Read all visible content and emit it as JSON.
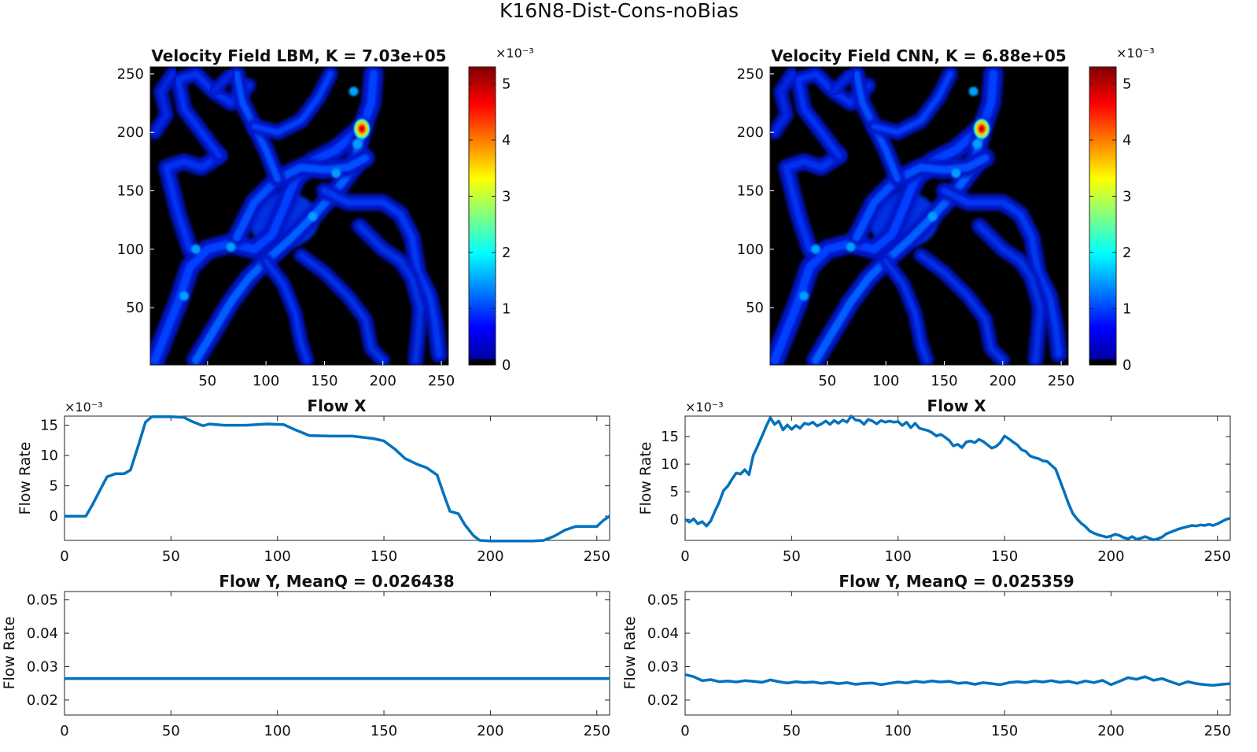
{
  "figure": {
    "title": "K16N8-Dist-Cons-noBias",
    "colormap": [
      "#00008f",
      "#0000ff",
      "#0080ff",
      "#00ffff",
      "#80ff80",
      "#ffff00",
      "#ff8000",
      "#ff0000",
      "#800000"
    ]
  },
  "chart_data": [
    {
      "id": "velocity_lbm",
      "type": "heatmap",
      "title": "Velocity Field LBM, K = 7.03e+05",
      "xlim": [
        1,
        256
      ],
      "ylim": [
        1,
        256
      ],
      "xticks": [
        "50",
        "100",
        "150",
        "200",
        "250"
      ],
      "yticks": [
        "50",
        "100",
        "150",
        "200",
        "250"
      ],
      "colorbar": {
        "exponent": "×10⁻³",
        "ticks": [
          "0",
          "1",
          "2",
          "3",
          "4",
          "5"
        ],
        "range": [
          0,
          5.3
        ]
      },
      "hotspot": {
        "x": 182,
        "y": 203,
        "value": 5.2
      }
    },
    {
      "id": "velocity_cnn",
      "type": "heatmap",
      "title": "Velocity Field CNN, K = 6.88e+05",
      "xlim": [
        1,
        256
      ],
      "ylim": [
        1,
        256
      ],
      "xticks": [
        "50",
        "100",
        "150",
        "200",
        "250"
      ],
      "yticks": [
        "50",
        "100",
        "150",
        "200",
        "250"
      ],
      "colorbar": {
        "exponent": "×10⁻³",
        "ticks": [
          "0",
          "1",
          "2",
          "3",
          "4",
          "5"
        ],
        "range": [
          0,
          5.3
        ]
      },
      "hotspot": {
        "x": 182,
        "y": 203,
        "value": 5.2
      }
    },
    {
      "id": "flowx_lbm",
      "type": "line",
      "title": "Flow X",
      "ylabel": "Flow Rate",
      "exponent": "×10⁻³",
      "xlim": [
        0,
        256
      ],
      "ylim": [
        -4,
        16.5
      ],
      "xticks": [
        "0",
        "50",
        "100",
        "150",
        "200",
        "250"
      ],
      "yticks": [
        "0",
        "5",
        "10",
        "15"
      ],
      "color": "#0072bd",
      "x": [
        0,
        5,
        10,
        13,
        17,
        20,
        24,
        28,
        31,
        35,
        38,
        41,
        45,
        50,
        56,
        60,
        65,
        68,
        75,
        85,
        95,
        103,
        108,
        115,
        125,
        135,
        145,
        150,
        155,
        160,
        166,
        170,
        175,
        178,
        181,
        185,
        188,
        192,
        195,
        200,
        210,
        220,
        225,
        230,
        235,
        240,
        245,
        250,
        253,
        256
      ],
      "y": [
        0,
        0,
        0,
        1.8,
        4.5,
        6.5,
        7.0,
        7.0,
        7.6,
        12.0,
        15.5,
        16.4,
        16.4,
        16.4,
        16.3,
        15.6,
        14.9,
        15.2,
        15.0,
        15.0,
        15.2,
        15.1,
        14.3,
        13.3,
        13.2,
        13.2,
        12.8,
        12.4,
        11.1,
        9.5,
        8.5,
        8.0,
        6.8,
        3.7,
        0.8,
        0.4,
        -1.4,
        -3.2,
        -4.0,
        -4.1,
        -4.1,
        -4.1,
        -4.0,
        -3.3,
        -2.3,
        -1.7,
        -1.7,
        -1.7,
        -0.7,
        0
      ]
    },
    {
      "id": "flowx_cnn",
      "type": "line",
      "title": "Flow X",
      "ylabel": "Flow Rate",
      "exponent": "×10⁻³",
      "xlim": [
        0,
        256
      ],
      "ylim": [
        -3.8,
        18.7
      ],
      "xticks": [
        "0",
        "50",
        "100",
        "150",
        "200",
        "250"
      ],
      "yticks": [
        "0",
        "5",
        "10",
        "15"
      ],
      "color": "#0072bd",
      "x": [
        0,
        2,
        4,
        6,
        8,
        10,
        12,
        14,
        16,
        18,
        20,
        22,
        24,
        26,
        28,
        30,
        32,
        34,
        36,
        38,
        40,
        42,
        44,
        46,
        48,
        50,
        52,
        54,
        56,
        58,
        60,
        62,
        64,
        66,
        68,
        70,
        72,
        74,
        76,
        78,
        80,
        82,
        84,
        86,
        88,
        90,
        92,
        94,
        96,
        98,
        100,
        102,
        104,
        106,
        108,
        110,
        112,
        114,
        116,
        118,
        120,
        122,
        124,
        126,
        128,
        130,
        132,
        134,
        136,
        138,
        140,
        142,
        144,
        146,
        148,
        150,
        152,
        154,
        156,
        158,
        160,
        162,
        164,
        166,
        168,
        170,
        172,
        174,
        176,
        178,
        180,
        182,
        184,
        186,
        188,
        190,
        192,
        194,
        196,
        198,
        200,
        202,
        204,
        206,
        208,
        210,
        212,
        214,
        216,
        218,
        220,
        222,
        224,
        226,
        228,
        230,
        232,
        234,
        236,
        238,
        240,
        242,
        244,
        246,
        248,
        250,
        252,
        254,
        256
      ],
      "y": [
        0,
        -0.5,
        0.1,
        -0.8,
        -0.4,
        -1.2,
        -0.3,
        1.5,
        3.1,
        5.2,
        6.0,
        7.3,
        8.4,
        8.2,
        9.0,
        8.1,
        11.6,
        13.2,
        15.0,
        16.8,
        18.4,
        17.2,
        17.8,
        16.2,
        17.1,
        16.3,
        17.0,
        16.5,
        17.4,
        17.2,
        17.6,
        16.9,
        17.3,
        17.8,
        17.2,
        17.9,
        17.4,
        18.0,
        17.6,
        18.7,
        18.0,
        17.9,
        17.2,
        18.1,
        17.8,
        17.3,
        17.9,
        17.6,
        17.8,
        17.6,
        17.7,
        17.0,
        17.6,
        16.6,
        17.4,
        16.5,
        16.3,
        16.1,
        15.7,
        15.1,
        15.4,
        14.9,
        14.3,
        13.3,
        13.6,
        13.0,
        14.0,
        14.2,
        13.9,
        14.5,
        14.1,
        13.5,
        12.9,
        13.2,
        13.9,
        15.1,
        14.6,
        14.0,
        13.5,
        12.6,
        12.3,
        11.5,
        11.2,
        11.0,
        10.6,
        10.5,
        9.8,
        9.1,
        7.1,
        5.0,
        2.9,
        1.1,
        0.1,
        -0.7,
        -1.3,
        -2.1,
        -2.5,
        -2.8,
        -3.0,
        -3.2,
        -3.0,
        -2.7,
        -2.9,
        -3.3,
        -3.5,
        -3.1,
        -3.6,
        -3.4,
        -3.1,
        -3.4,
        -3.7,
        -3.5,
        -3.2,
        -2.6,
        -2.3,
        -2.0,
        -1.7,
        -1.5,
        -1.3,
        -1.1,
        -1.2,
        -1.0,
        -1.1,
        -0.9,
        -1.1,
        -0.8,
        -0.4,
        0.0,
        0.2
      ]
    },
    {
      "id": "flowy_lbm",
      "type": "line",
      "title": "Flow Y, MeanQ = 0.026438",
      "ylabel": "Flow Rate",
      "xlim": [
        0,
        256
      ],
      "ylim": [
        0.0155,
        0.0525
      ],
      "xticks": [
        "0",
        "50",
        "100",
        "150",
        "200",
        "250"
      ],
      "yticks": [
        "0.02",
        "0.03",
        "0.04",
        "0.05"
      ],
      "color": "#0072bd",
      "x": [
        0,
        256
      ],
      "y": [
        0.026438,
        0.026438
      ]
    },
    {
      "id": "flowy_cnn",
      "type": "line",
      "title": "Flow Y, MeanQ = 0.025359",
      "ylabel": "Flow Rate",
      "xlim": [
        0,
        256
      ],
      "ylim": [
        0.0155,
        0.0525
      ],
      "xticks": [
        "0",
        "50",
        "100",
        "150",
        "200",
        "250"
      ],
      "yticks": [
        "0.02",
        "0.03",
        "0.04",
        "0.05"
      ],
      "color": "#0072bd",
      "x": [
        0,
        4,
        8,
        12,
        16,
        20,
        24,
        28,
        32,
        36,
        40,
        44,
        48,
        52,
        56,
        60,
        64,
        68,
        72,
        76,
        80,
        84,
        88,
        92,
        96,
        100,
        104,
        108,
        112,
        116,
        120,
        124,
        128,
        132,
        136,
        140,
        144,
        148,
        152,
        156,
        160,
        164,
        168,
        172,
        176,
        180,
        184,
        188,
        192,
        196,
        200,
        204,
        208,
        212,
        216,
        220,
        224,
        228,
        232,
        236,
        240,
        244,
        248,
        252,
        256
      ],
      "y": [
        0.0276,
        0.027,
        0.0258,
        0.0261,
        0.0255,
        0.0257,
        0.0254,
        0.0258,
        0.0256,
        0.0253,
        0.026,
        0.0255,
        0.0251,
        0.0255,
        0.0252,
        0.0254,
        0.025,
        0.0253,
        0.0249,
        0.0252,
        0.0247,
        0.025,
        0.0251,
        0.0246,
        0.025,
        0.0254,
        0.0251,
        0.0256,
        0.0253,
        0.0257,
        0.0254,
        0.0256,
        0.025,
        0.0252,
        0.0247,
        0.0252,
        0.0249,
        0.0246,
        0.0252,
        0.0255,
        0.0252,
        0.0257,
        0.0254,
        0.0258,
        0.0253,
        0.0256,
        0.025,
        0.0257,
        0.0252,
        0.0259,
        0.0246,
        0.0256,
        0.0267,
        0.0262,
        0.027,
        0.0259,
        0.0264,
        0.0255,
        0.0246,
        0.0255,
        0.0249,
        0.0246,
        0.0244,
        0.0247,
        0.0249
      ]
    }
  ]
}
